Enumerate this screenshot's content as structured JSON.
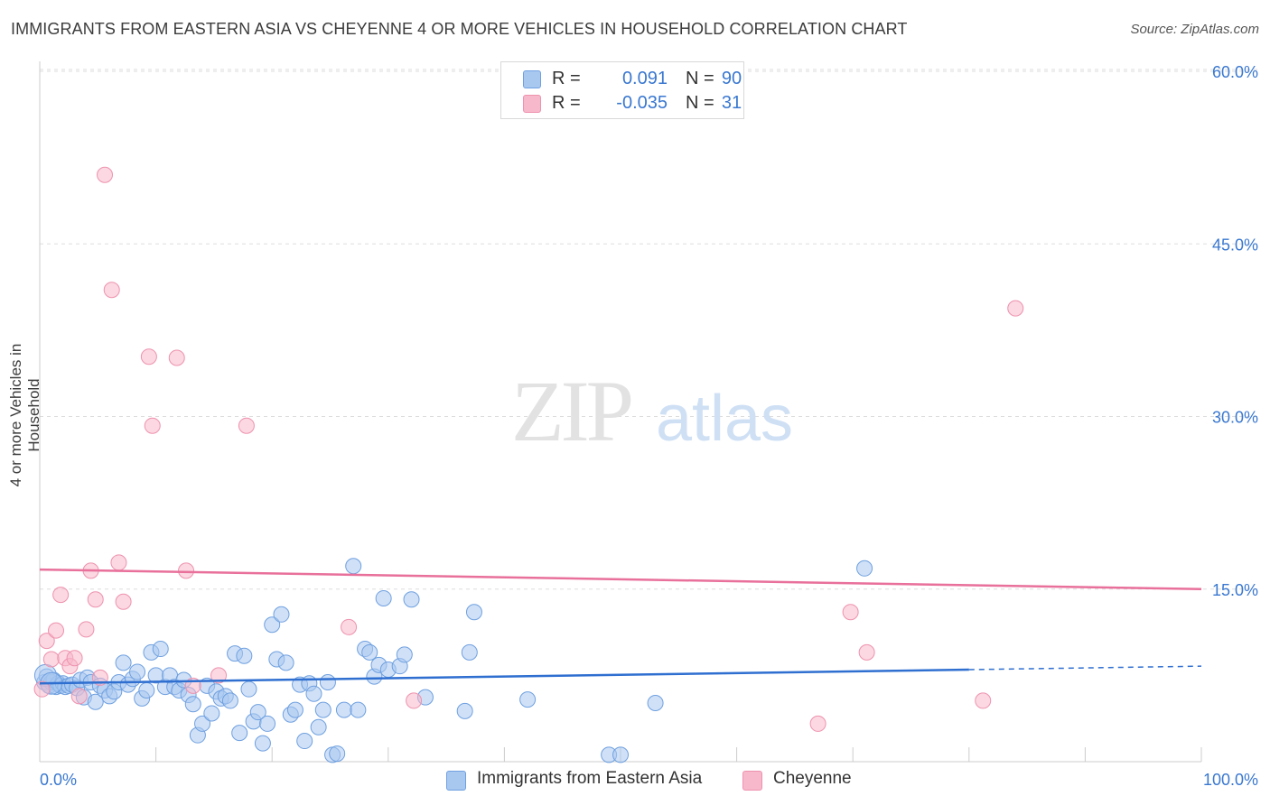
{
  "header": {
    "title": "IMMIGRANTS FROM EASTERN ASIA VS CHEYENNE 4 OR MORE VEHICLES IN HOUSEHOLD CORRELATION CHART",
    "source": "Source: ZipAtlas.com"
  },
  "watermark": {
    "zip": "ZIP",
    "atlas": "atlas"
  },
  "legend": {
    "rows": [
      {
        "r_label": "R =",
        "r_value": "0.091",
        "n_label": "N =",
        "n_value": "90",
        "color": "#a9c8f0"
      },
      {
        "r_label": "R =",
        "r_value": "-0.035",
        "n_label": "N =",
        "n_value": "31",
        "color": "#f7b8cb"
      }
    ]
  },
  "bottom_legend": {
    "items": [
      {
        "label": "Immigrants from Eastern Asia",
        "color": "#a9c8f0"
      },
      {
        "label": "Cheyenne",
        "color": "#f7b8cb"
      }
    ]
  },
  "chart_data": {
    "type": "scatter",
    "ylabel": "4 or more Vehicles in Household",
    "x_tick_labels": [
      "0.0%",
      "100.0%"
    ],
    "y_tick_labels": [
      "15.0%",
      "30.0%",
      "45.0%",
      "60.0%"
    ],
    "y_ticks": [
      15,
      30,
      45,
      60
    ],
    "xlim": [
      0,
      100
    ],
    "ylim": [
      0,
      62
    ],
    "grid": true,
    "series": [
      {
        "name": "Immigrants from Eastern Asia",
        "color": "#6fa0e0",
        "fill": "#a9c8f0",
        "trend": {
          "x": [
            0,
            80
          ],
          "y": [
            6.8,
            8.0
          ],
          "dashed_to": [
            100,
            8.3
          ],
          "color": "#2f6fd0"
        },
        "points": [
          [
            0.4,
            6.9
          ],
          [
            0.6,
            7.4
          ],
          [
            0.8,
            6.6
          ],
          [
            1.0,
            6.9
          ],
          [
            1.2,
            7.1
          ],
          [
            1.4,
            6.5
          ],
          [
            1.6,
            6.8
          ],
          [
            1.8,
            6.6
          ],
          [
            2.0,
            6.8
          ],
          [
            2.2,
            6.5
          ],
          [
            2.5,
            6.6
          ],
          [
            2.8,
            6.7
          ],
          [
            3.2,
            6.4
          ],
          [
            3.5,
            7.1
          ],
          [
            3.8,
            5.6
          ],
          [
            4.1,
            7.3
          ],
          [
            4.4,
            6.9
          ],
          [
            4.8,
            5.2
          ],
          [
            5.2,
            6.6
          ],
          [
            5.6,
            6.2
          ],
          [
            6.0,
            5.7
          ],
          [
            6.4,
            6.1
          ],
          [
            6.8,
            6.9
          ],
          [
            7.2,
            8.6
          ],
          [
            7.6,
            6.7
          ],
          [
            8.0,
            7.2
          ],
          [
            8.4,
            7.8
          ],
          [
            8.8,
            5.5
          ],
          [
            9.2,
            6.2
          ],
          [
            9.6,
            9.5
          ],
          [
            10.0,
            7.5
          ],
          [
            10.4,
            9.8
          ],
          [
            10.8,
            6.5
          ],
          [
            11.2,
            7.5
          ],
          [
            11.6,
            6.5
          ],
          [
            12.0,
            6.2
          ],
          [
            12.4,
            7.1
          ],
          [
            12.8,
            5.8
          ],
          [
            13.2,
            5.0
          ],
          [
            13.6,
            2.3
          ],
          [
            14.0,
            3.3
          ],
          [
            14.4,
            6.6
          ],
          [
            14.8,
            4.2
          ],
          [
            15.2,
            6.1
          ],
          [
            15.6,
            5.5
          ],
          [
            16.0,
            5.7
          ],
          [
            16.4,
            5.3
          ],
          [
            16.8,
            9.4
          ],
          [
            17.2,
            2.5
          ],
          [
            17.6,
            9.2
          ],
          [
            18.0,
            6.3
          ],
          [
            18.4,
            3.5
          ],
          [
            18.8,
            4.3
          ],
          [
            19.2,
            1.6
          ],
          [
            19.6,
            3.3
          ],
          [
            20.0,
            11.9
          ],
          [
            20.4,
            8.9
          ],
          [
            20.8,
            12.8
          ],
          [
            21.2,
            8.6
          ],
          [
            21.6,
            4.1
          ],
          [
            22.0,
            4.5
          ],
          [
            22.4,
            6.7
          ],
          [
            22.8,
            1.8
          ],
          [
            23.2,
            6.8
          ],
          [
            23.6,
            5.9
          ],
          [
            24.0,
            3.0
          ],
          [
            24.4,
            4.5
          ],
          [
            24.8,
            6.9
          ],
          [
            25.2,
            0.6
          ],
          [
            25.6,
            0.7
          ],
          [
            26.2,
            4.5
          ],
          [
            27.0,
            17.0
          ],
          [
            27.4,
            4.5
          ],
          [
            28.0,
            9.8
          ],
          [
            28.4,
            9.5
          ],
          [
            28.8,
            7.4
          ],
          [
            29.2,
            8.4
          ],
          [
            29.6,
            14.2
          ],
          [
            30.0,
            8.0
          ],
          [
            31.0,
            8.3
          ],
          [
            31.4,
            9.3
          ],
          [
            32.0,
            14.1
          ],
          [
            33.2,
            5.6
          ],
          [
            36.6,
            4.4
          ],
          [
            37.0,
            9.5
          ],
          [
            37.4,
            13.0
          ],
          [
            42.0,
            5.4
          ],
          [
            49.0,
            0.6
          ],
          [
            50.0,
            0.6
          ],
          [
            53.0,
            5.1
          ],
          [
            71.0,
            16.8
          ]
        ],
        "big_points": [
          [
            0.5,
            7.5
          ],
          [
            1.0,
            6.8
          ]
        ]
      },
      {
        "name": "Cheyenne",
        "color": "#ee92ae",
        "fill": "#f7b8cb",
        "trend": {
          "x": [
            0,
            100
          ],
          "y": [
            16.7,
            15.0
          ],
          "color": "#e8709a"
        },
        "points": [
          [
            0.2,
            6.3
          ],
          [
            0.6,
            10.5
          ],
          [
            1.0,
            8.9
          ],
          [
            1.4,
            11.4
          ],
          [
            1.8,
            14.5
          ],
          [
            2.2,
            9.0
          ],
          [
            2.6,
            8.3
          ],
          [
            3.0,
            9.0
          ],
          [
            3.4,
            5.7
          ],
          [
            4.0,
            11.5
          ],
          [
            4.4,
            16.6
          ],
          [
            4.8,
            14.1
          ],
          [
            5.2,
            7.3
          ],
          [
            5.6,
            51.0
          ],
          [
            6.2,
            41.0
          ],
          [
            6.8,
            17.3
          ],
          [
            7.2,
            13.9
          ],
          [
            9.4,
            35.2
          ],
          [
            9.7,
            29.2
          ],
          [
            11.8,
            35.1
          ],
          [
            12.6,
            16.6
          ],
          [
            13.2,
            6.6
          ],
          [
            15.4,
            7.5
          ],
          [
            17.8,
            29.2
          ],
          [
            26.6,
            11.7
          ],
          [
            32.2,
            5.3
          ],
          [
            67.0,
            3.3
          ],
          [
            69.8,
            13.0
          ],
          [
            71.2,
            9.5
          ],
          [
            81.2,
            5.3
          ],
          [
            84.0,
            39.4
          ]
        ]
      }
    ]
  }
}
